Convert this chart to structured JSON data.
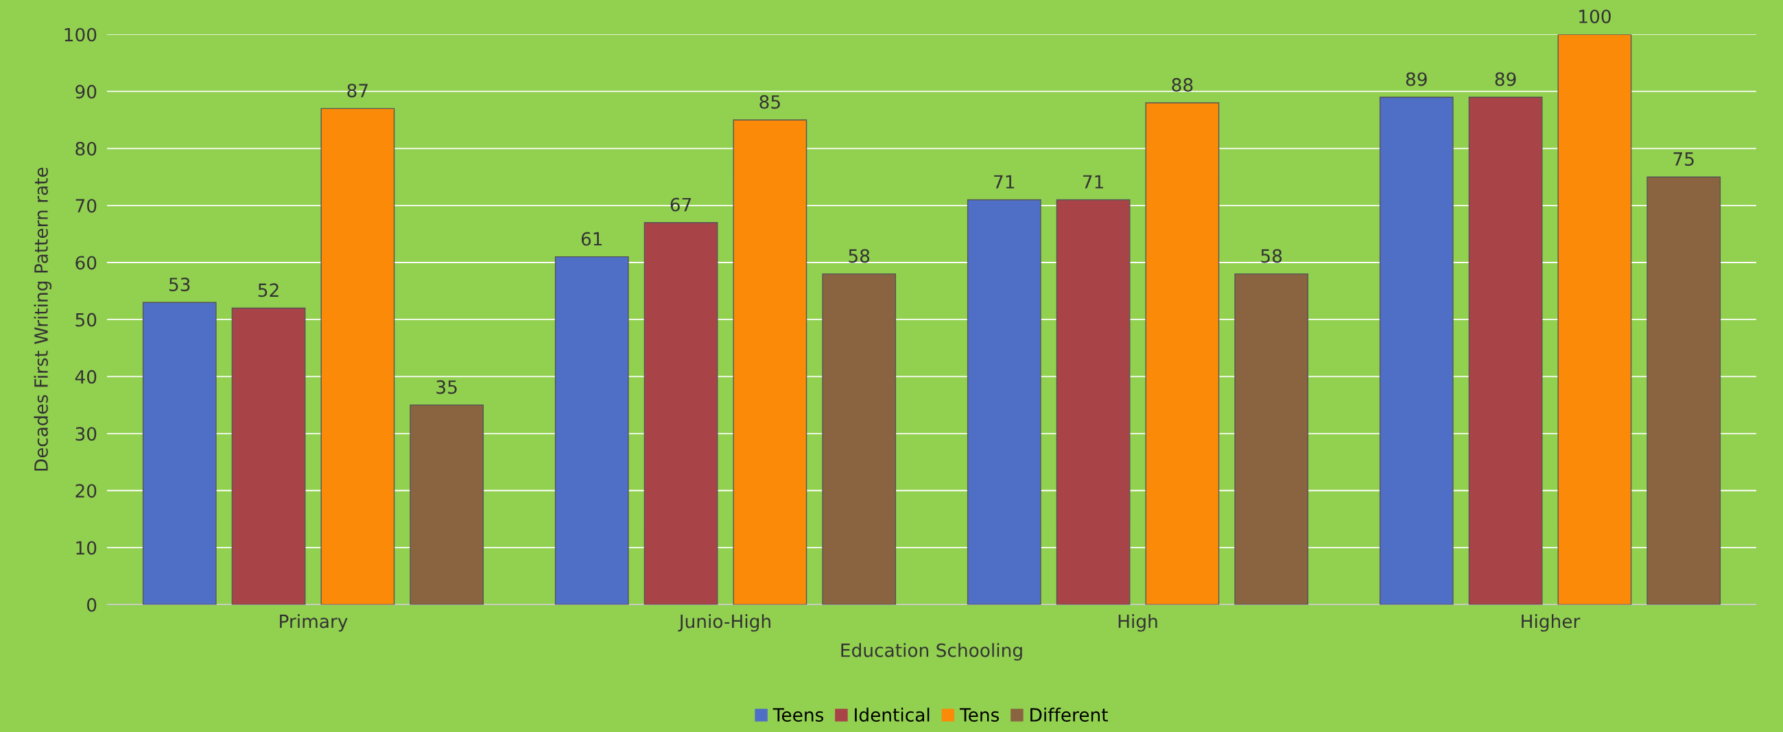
{
  "chart_data": {
    "type": "bar",
    "xlabel": "Education Schooling",
    "ylabel": "Decades First Writing Pattern rate",
    "categories": [
      "Primary",
      "Junio-High",
      "High",
      "Higher"
    ],
    "series": [
      {
        "name": "Teens",
        "color": "#4f6fc6",
        "values": [
          53,
          61,
          71,
          89
        ]
      },
      {
        "name": "Identical",
        "color": "#a84448",
        "values": [
          52,
          67,
          71,
          89
        ]
      },
      {
        "name": "Tens",
        "color": "#fb8a08",
        "values": [
          87,
          85,
          88,
          100
        ]
      },
      {
        "name": "Different",
        "color": "#8a6440",
        "values": [
          35,
          58,
          58,
          75
        ]
      }
    ],
    "ylim": [
      0,
      100
    ],
    "yticks": [
      0,
      10,
      20,
      30,
      40,
      50,
      60,
      70,
      80,
      90,
      100
    ],
    "grid": "y",
    "legend": "bottom",
    "data_labels": true
  }
}
